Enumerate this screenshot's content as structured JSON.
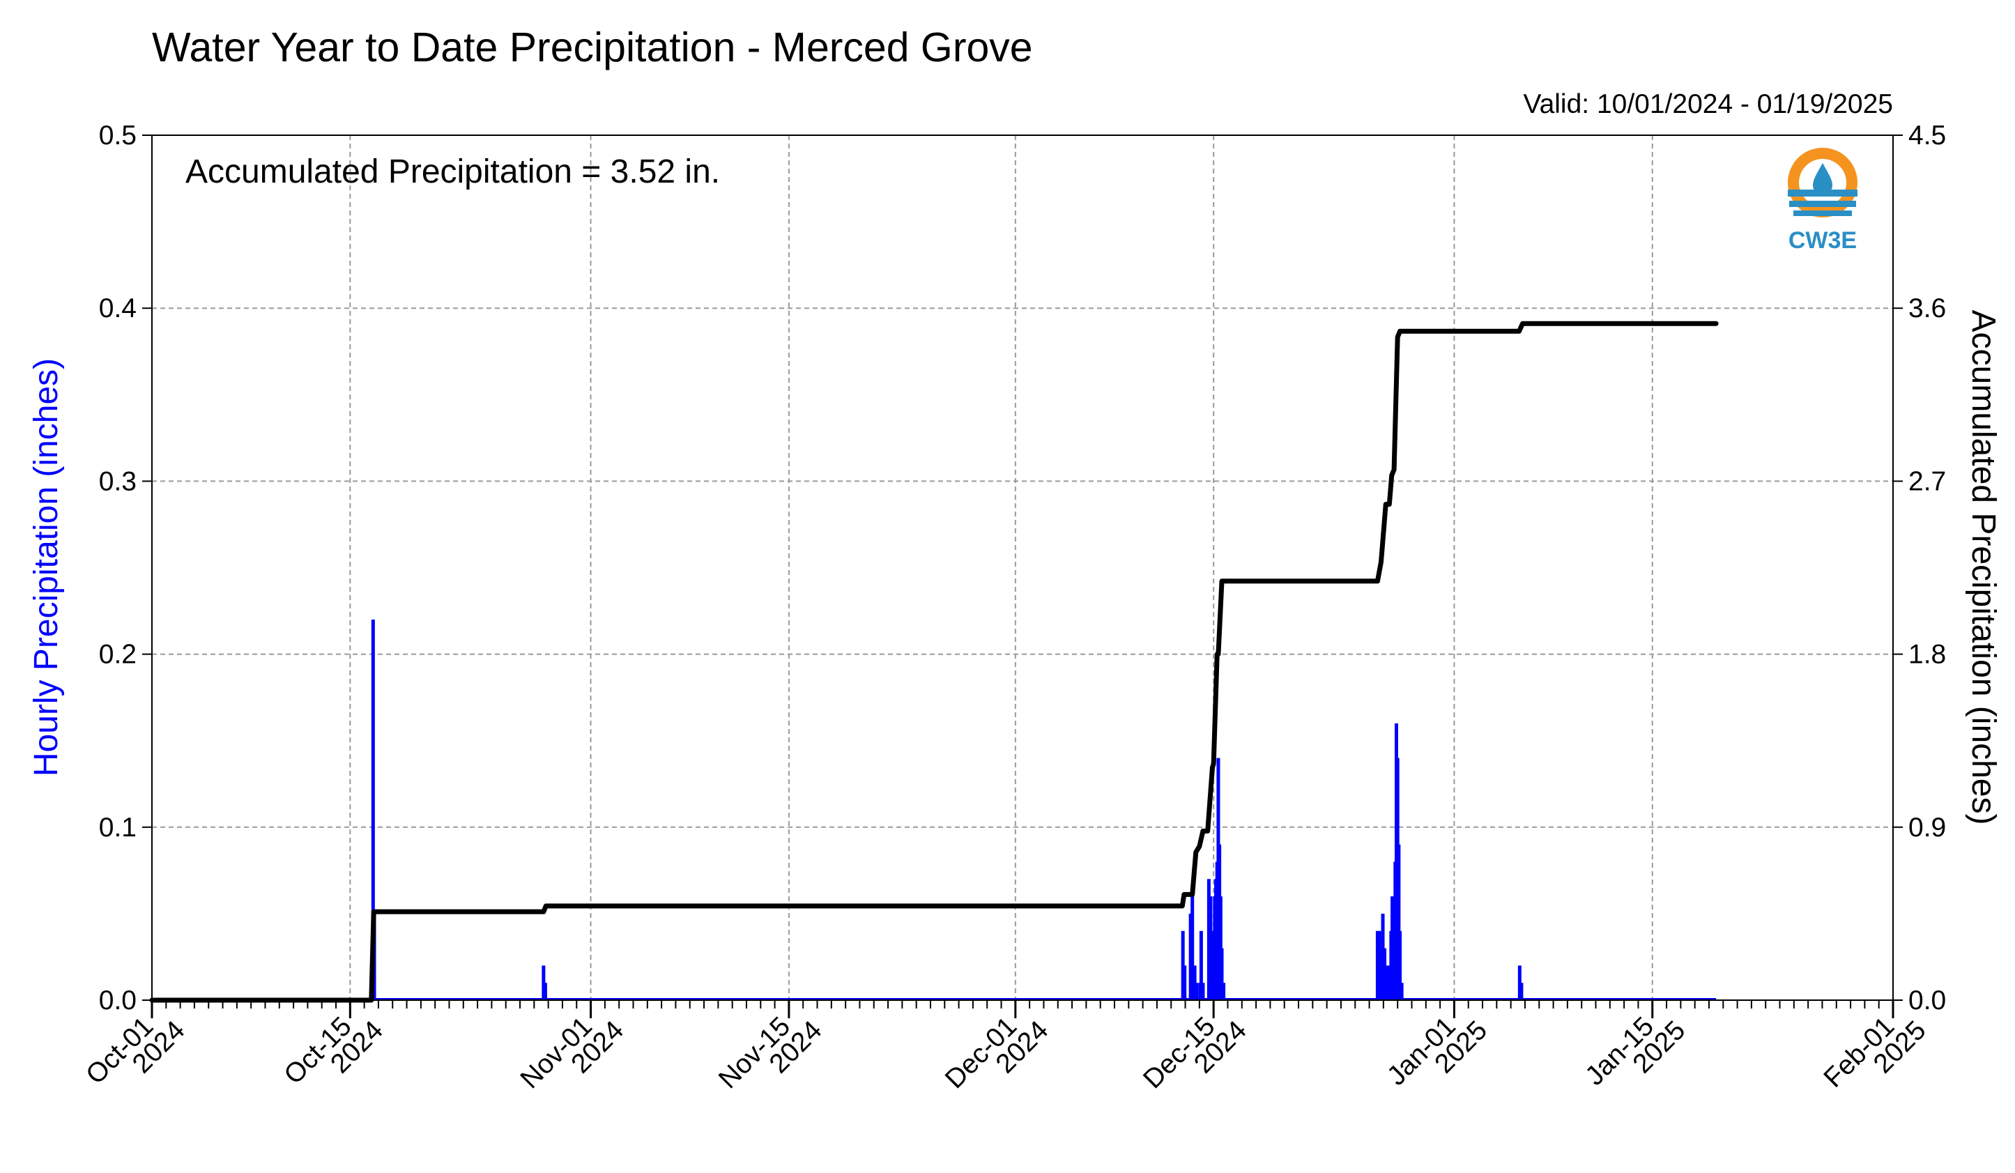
{
  "chart_data": {
    "type": "bar+line",
    "title": "Water Year to Date Precipitation - Merced Grove",
    "valid_text": "Valid: 10/01/2024 - 01/19/2025",
    "annotation": "Accumulated Precipitation = 3.52 in.",
    "logo_text": "CW3E",
    "x_axis": {
      "range": [
        "2024-10-01",
        "2025-02-01"
      ],
      "ticks": [
        {
          "date": "2024-10-01",
          "line1": "Oct-01",
          "line2": "2024"
        },
        {
          "date": "2024-10-15",
          "line1": "Oct-15",
          "line2": "2024"
        },
        {
          "date": "2024-11-01",
          "line1": "Nov-01",
          "line2": "2024"
        },
        {
          "date": "2024-11-15",
          "line1": "Nov-15",
          "line2": "2024"
        },
        {
          "date": "2024-12-01",
          "line1": "Dec-01",
          "line2": "2024"
        },
        {
          "date": "2024-12-15",
          "line1": "Dec-15",
          "line2": "2024"
        },
        {
          "date": "2025-01-01",
          "line1": "Jan-01",
          "line2": "2025"
        },
        {
          "date": "2025-01-15",
          "line1": "Jan-15",
          "line2": "2025"
        },
        {
          "date": "2025-02-01",
          "line1": "Feb-01",
          "line2": "2025"
        }
      ]
    },
    "y_left": {
      "label": "Hourly Precipitation (inches)",
      "ylim": [
        0,
        0.5
      ],
      "ticks": [
        "0.0",
        "0.1",
        "0.2",
        "0.3",
        "0.4",
        "0.5"
      ],
      "color": "#0000ff"
    },
    "y_right": {
      "label": "Accumulated Precipitation (inches)",
      "ylim": [
        0,
        4.5
      ],
      "ticks": [
        "0.0",
        "0.9",
        "1.8",
        "2.7",
        "3.6",
        "4.5"
      ],
      "color": "#000000"
    },
    "grid": true,
    "hourly_series": {
      "name": "Hourly Precipitation",
      "color": "#0000ff",
      "bars": [
        [
          "2024-10-16T13:00",
          0.02
        ],
        [
          "2024-10-16T15:00",
          0.22
        ],
        [
          "2024-10-16T17:00",
          0.05
        ],
        [
          "2024-10-28T16:00",
          0.02
        ],
        [
          "2024-10-28T19:00",
          0.01
        ],
        [
          "2024-12-12T20:00",
          0.04
        ],
        [
          "2024-12-12T23:00",
          0.02
        ],
        [
          "2024-12-13T09:00",
          0.05
        ],
        [
          "2024-12-13T12:00",
          0.06
        ],
        [
          "2024-12-13T16:00",
          0.02
        ],
        [
          "2024-12-13T19:00",
          0.01
        ],
        [
          "2024-12-14T01:00",
          0.01
        ],
        [
          "2024-12-14T03:00",
          0.04
        ],
        [
          "2024-12-14T06:00",
          0.01
        ],
        [
          "2024-12-14T16:00",
          0.07
        ],
        [
          "2024-12-14T19:00",
          0.06
        ],
        [
          "2024-12-14T22:00",
          0.04
        ],
        [
          "2024-12-15T02:00",
          0.06
        ],
        [
          "2024-12-15T04:00",
          0.07
        ],
        [
          "2024-12-15T06:00",
          0.08
        ],
        [
          "2024-12-15T08:00",
          0.14
        ],
        [
          "2024-12-15T10:00",
          0.09
        ],
        [
          "2024-12-15T12:00",
          0.06
        ],
        [
          "2024-12-15T14:00",
          0.03
        ],
        [
          "2024-12-15T17:00",
          0.01
        ],
        [
          "2024-12-26T14:00",
          0.04
        ],
        [
          "2024-12-26T17:00",
          0.04
        ],
        [
          "2024-12-26T20:00",
          0.03
        ],
        [
          "2024-12-26T23:00",
          0.05
        ],
        [
          "2024-12-27T02:00",
          0.03
        ],
        [
          "2024-12-27T05:00",
          0.02
        ],
        [
          "2024-12-27T10:00",
          0.02
        ],
        [
          "2024-12-27T13:00",
          0.04
        ],
        [
          "2024-12-27T15:00",
          0.06
        ],
        [
          "2024-12-27T17:00",
          0.03
        ],
        [
          "2024-12-27T20:00",
          0.08
        ],
        [
          "2024-12-27T22:00",
          0.16
        ],
        [
          "2024-12-28T00:00",
          0.14
        ],
        [
          "2024-12-28T02:00",
          0.09
        ],
        [
          "2024-12-28T04:00",
          0.04
        ],
        [
          "2024-12-28T07:00",
          0.01
        ],
        [
          "2025-01-05T15:00",
          0.02
        ],
        [
          "2025-01-05T18:00",
          0.01
        ]
      ]
    },
    "accumulated_series": {
      "name": "Accumulated Precipitation",
      "color": "#000000",
      "points": [
        [
          "2024-10-01T00:00",
          0.0
        ],
        [
          "2024-10-16T12:00",
          0.0
        ],
        [
          "2024-10-16T16:00",
          0.46
        ],
        [
          "2024-10-28T16:00",
          0.46
        ],
        [
          "2024-10-28T20:00",
          0.49
        ],
        [
          "2024-12-12T19:00",
          0.49
        ],
        [
          "2024-12-12T22:00",
          0.55
        ],
        [
          "2024-12-13T12:00",
          0.55
        ],
        [
          "2024-12-13T18:00",
          0.77
        ],
        [
          "2024-12-14T00:00",
          0.8
        ],
        [
          "2024-12-14T06:00",
          0.88
        ],
        [
          "2024-12-14T14:00",
          0.88
        ],
        [
          "2024-12-14T22:00",
          1.21
        ],
        [
          "2024-12-15T00:00",
          1.23
        ],
        [
          "2024-12-15T06:00",
          1.8
        ],
        [
          "2024-12-15T08:00",
          1.8
        ],
        [
          "2024-12-15T14:00",
          2.18
        ],
        [
          "2024-12-26T14:00",
          2.18
        ],
        [
          "2024-12-26T20:00",
          2.28
        ],
        [
          "2024-12-27T04:00",
          2.58
        ],
        [
          "2024-12-27T10:00",
          2.58
        ],
        [
          "2024-12-27T14:00",
          2.73
        ],
        [
          "2024-12-27T18:00",
          2.76
        ],
        [
          "2024-12-28T00:00",
          3.45
        ],
        [
          "2024-12-28T04:00",
          3.48
        ],
        [
          "2025-01-05T14:00",
          3.48
        ],
        [
          "2025-01-05T20:00",
          3.52
        ],
        [
          "2025-01-19T12:00",
          3.52
        ]
      ]
    },
    "trace_baseline_end": "2025-01-19T12:00"
  }
}
